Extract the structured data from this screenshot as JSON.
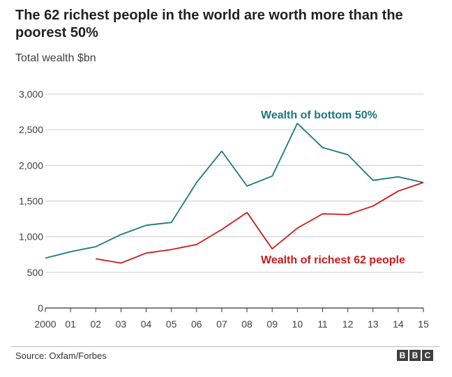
{
  "title": "The 62 richest people in the world are worth more than the poorest 50%",
  "subtitle": "Total wealth $bn",
  "source": "Source: Oxfam/Forbes",
  "logo": [
    "B",
    "B",
    "C"
  ],
  "colors": {
    "bottom50": "#1a7a7a",
    "richest62": "#cc1a1a",
    "axis": "#333333",
    "grid": "#cccccc"
  },
  "chart_data": {
    "type": "line",
    "title": "The 62 richest people in the world are worth more than the poorest 50%",
    "ylabel": "Total wealth $bn",
    "xlabel": "",
    "ylim": [
      0,
      3000
    ],
    "yticks": [
      0,
      500,
      1000,
      1500,
      2000,
      2500,
      3000
    ],
    "ytick_labels": [
      "0",
      "500",
      "1,000",
      "1,500",
      "2,000",
      "2,500",
      "3,000"
    ],
    "x": [
      2000,
      2001,
      2002,
      2003,
      2004,
      2005,
      2006,
      2007,
      2008,
      2009,
      2010,
      2011,
      2012,
      2013,
      2014,
      2015
    ],
    "xtick_labels": [
      "2000",
      "01",
      "02",
      "03",
      "04",
      "05",
      "06",
      "07",
      "08",
      "09",
      "10",
      "11",
      "12",
      "13",
      "14",
      "15"
    ],
    "grid": true,
    "series": [
      {
        "name": "Wealth of bottom 50%",
        "color": "#1a7a7a",
        "values": [
          700,
          790,
          860,
          1030,
          1160,
          1200,
          1760,
          2200,
          1710,
          1850,
          2590,
          2250,
          2150,
          1790,
          1840,
          1760
        ]
      },
      {
        "name": "Wealth of richest 62 people",
        "color": "#cc1a1a",
        "values": [
          null,
          null,
          690,
          630,
          770,
          820,
          890,
          1100,
          1340,
          830,
          1120,
          1320,
          1310,
          1430,
          1640,
          1760
        ]
      }
    ]
  }
}
